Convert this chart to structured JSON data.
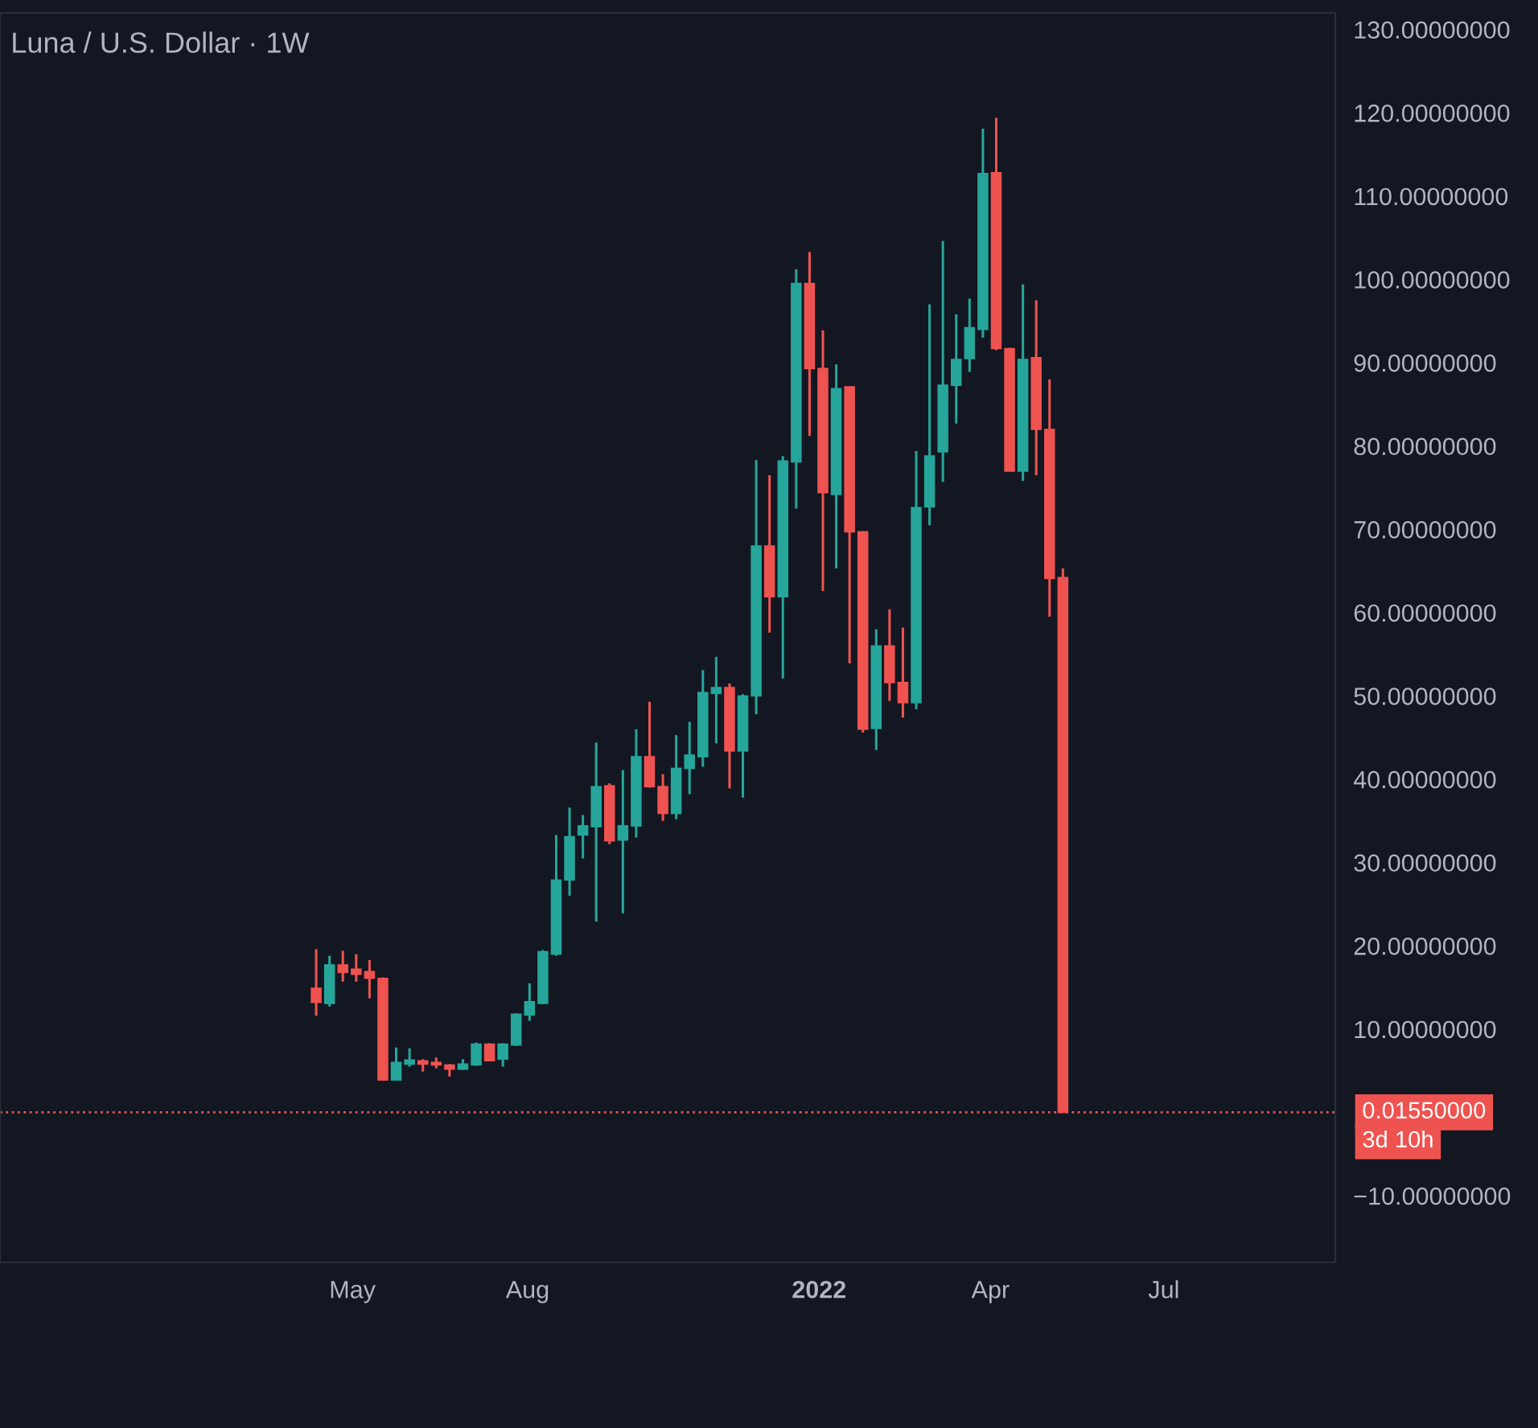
{
  "chart_data": {
    "type": "candlestick",
    "title": "Luna / U.S. Dollar · 1W",
    "x": [
      "2021-04-12",
      "2021-04-19",
      "2021-04-26",
      "2021-05-03",
      "2021-05-10",
      "2021-05-17",
      "2021-05-24",
      "2021-05-31",
      "2021-06-07",
      "2021-06-14",
      "2021-06-21",
      "2021-06-28",
      "2021-07-05",
      "2021-07-12",
      "2021-07-19",
      "2021-07-26",
      "2021-08-02",
      "2021-08-09",
      "2021-08-16",
      "2021-08-23",
      "2021-08-30",
      "2021-09-06",
      "2021-09-13",
      "2021-09-20",
      "2021-09-27",
      "2021-10-04",
      "2021-10-11",
      "2021-10-18",
      "2021-10-25",
      "2021-11-01",
      "2021-11-08",
      "2021-11-15",
      "2021-11-22",
      "2021-11-29",
      "2021-12-06",
      "2021-12-13",
      "2021-12-20",
      "2021-12-27",
      "2022-01-03",
      "2022-01-10",
      "2022-01-17",
      "2022-01-24",
      "2022-01-31",
      "2022-02-07",
      "2022-02-14",
      "2022-02-21",
      "2022-02-28",
      "2022-03-07",
      "2022-03-14",
      "2022-03-21",
      "2022-03-28",
      "2022-04-04",
      "2022-04-11",
      "2022-04-18",
      "2022-04-25",
      "2022-05-02",
      "2022-05-09"
    ],
    "ohlc": [
      [
        14.9,
        19.6,
        11.6,
        13.2
      ],
      [
        13.1,
        18.8,
        12.7,
        17.7
      ],
      [
        17.7,
        19.4,
        15.7,
        16.8
      ],
      [
        17.2,
        19.0,
        15.7,
        16.6
      ],
      [
        16.9,
        18.3,
        13.7,
        16.1
      ],
      [
        16.1,
        16.2,
        3.8,
        3.9
      ],
      [
        3.9,
        7.8,
        3.8,
        6.0
      ],
      [
        5.8,
        7.7,
        5.5,
        6.3
      ],
      [
        6.2,
        6.4,
        4.9,
        5.8
      ],
      [
        6.0,
        6.6,
        5.3,
        5.7
      ],
      [
        5.7,
        5.8,
        4.3,
        5.2
      ],
      [
        5.2,
        6.4,
        5.1,
        5.8
      ],
      [
        5.7,
        8.4,
        5.6,
        8.2
      ],
      [
        8.2,
        8.3,
        6.2,
        6.2
      ],
      [
        6.4,
        8.3,
        5.5,
        8.2
      ],
      [
        8.1,
        11.9,
        8.0,
        11.8
      ],
      [
        11.7,
        15.5,
        11.0,
        13.3
      ],
      [
        13.1,
        19.5,
        13.0,
        19.3
      ],
      [
        19.0,
        33.3,
        18.8,
        27.9
      ],
      [
        27.9,
        36.6,
        26.0,
        33.1
      ],
      [
        33.3,
        35.7,
        30.5,
        34.4
      ],
      [
        34.3,
        44.4,
        22.9,
        39.1
      ],
      [
        39.2,
        39.5,
        32.2,
        32.6
      ],
      [
        32.7,
        41.1,
        23.9,
        34.4
      ],
      [
        34.4,
        46.0,
        33.0,
        42.7
      ],
      [
        42.7,
        49.3,
        39.0,
        39.1
      ],
      [
        39.1,
        40.6,
        35.0,
        35.9
      ],
      [
        35.9,
        45.3,
        35.2,
        41.3
      ],
      [
        41.3,
        46.9,
        38.2,
        42.9
      ],
      [
        42.7,
        53.1,
        41.5,
        50.4
      ],
      [
        50.3,
        54.7,
        44.3,
        51.0
      ],
      [
        51.0,
        51.5,
        38.9,
        43.4
      ],
      [
        43.4,
        50.2,
        37.8,
        50.0
      ],
      [
        50.0,
        78.3,
        47.8,
        68.0
      ],
      [
        68.0,
        76.5,
        57.6,
        61.9
      ],
      [
        61.9,
        78.8,
        52.1,
        78.2
      ],
      [
        78.1,
        101.2,
        72.5,
        99.5
      ],
      [
        99.5,
        103.3,
        81.2,
        89.3
      ],
      [
        89.3,
        93.9,
        62.6,
        74.4
      ],
      [
        74.2,
        89.8,
        65.3,
        86.9
      ],
      [
        87.1,
        87.1,
        53.9,
        69.7
      ],
      [
        69.7,
        69.7,
        45.6,
        46.0
      ],
      [
        46.1,
        58.0,
        43.5,
        56.0
      ],
      [
        56.0,
        60.4,
        49.4,
        51.6
      ],
      [
        51.6,
        58.2,
        47.4,
        49.2
      ],
      [
        49.2,
        79.4,
        48.4,
        72.6
      ],
      [
        72.7,
        97.0,
        70.5,
        78.8
      ],
      [
        79.3,
        104.6,
        75.7,
        87.3
      ],
      [
        87.3,
        95.8,
        82.7,
        90.4
      ],
      [
        90.5,
        97.7,
        88.9,
        94.2
      ],
      [
        94.0,
        118.1,
        93.0,
        112.7
      ],
      [
        112.8,
        119.4,
        91.5,
        91.7
      ],
      [
        91.7,
        91.8,
        77.0,
        77.0
      ],
      [
        77.0,
        99.4,
        75.8,
        90.4
      ],
      [
        90.6,
        97.5,
        76.5,
        82.0
      ],
      [
        82.0,
        88.0,
        59.5,
        64.1
      ],
      [
        64.2,
        65.3,
        0.0155,
        0.0155
      ]
    ],
    "colors": [
      "#ef5350",
      "#26a69a",
      "#ef5350",
      "#ef5350",
      "#ef5350",
      "#ef5350",
      "#26a69a",
      "#26a69a",
      "#ef5350",
      "#ef5350",
      "#ef5350",
      "#26a69a",
      "#26a69a",
      "#ef5350",
      "#26a69a",
      "#26a69a",
      "#26a69a",
      "#26a69a",
      "#26a69a",
      "#26a69a",
      "#26a69a",
      "#26a69a",
      "#ef5350",
      "#26a69a",
      "#26a69a",
      "#ef5350",
      "#ef5350",
      "#26a69a",
      "#26a69a",
      "#26a69a",
      "#26a69a",
      "#ef5350",
      "#26a69a",
      "#26a69a",
      "#ef5350",
      "#26a69a",
      "#26a69a",
      "#ef5350",
      "#ef5350",
      "#26a69a",
      "#ef5350",
      "#ef5350",
      "#26a69a",
      "#ef5350",
      "#ef5350",
      "#26a69a",
      "#26a69a",
      "#26a69a",
      "#26a69a",
      "#26a69a",
      "#26a69a",
      "#ef5350",
      "#ef5350",
      "#26a69a",
      "#ef5350",
      "#ef5350",
      "#ef5350"
    ],
    "xlim": [
      "2020-10-28",
      "2022-09-29"
    ],
    "xticks": [
      {
        "value": "2021-05-01",
        "label": "May"
      },
      {
        "value": "2021-08-01",
        "label": "Aug"
      },
      {
        "value": "2022-01-01",
        "label": "2022"
      },
      {
        "value": "2022-04-01",
        "label": "Apr"
      },
      {
        "value": "2022-07-01",
        "label": "Jul"
      }
    ],
    "ylim": [
      -18,
      132
    ],
    "yticks": [
      {
        "value": -10,
        "label": "−10.00000000"
      },
      {
        "value": 10,
        "label": "10.00000000"
      },
      {
        "value": 20,
        "label": "20.00000000"
      },
      {
        "value": 30,
        "label": "30.00000000"
      },
      {
        "value": 40,
        "label": "40.00000000"
      },
      {
        "value": 50,
        "label": "50.00000000"
      },
      {
        "value": 60,
        "label": "60.00000000"
      },
      {
        "value": 70,
        "label": "70.00000000"
      },
      {
        "value": 80,
        "label": "80.00000000"
      },
      {
        "value": 90,
        "label": "90.00000000"
      },
      {
        "value": 100,
        "label": "100.00000000"
      },
      {
        "value": 110,
        "label": "110.00000000"
      },
      {
        "value": 120,
        "label": "120.00000000"
      },
      {
        "value": 130,
        "label": "130.00000000"
      }
    ],
    "ref_lines": [
      {
        "axis": "y",
        "value": 0.0155,
        "label": "0.01550000",
        "color": "#ef5350",
        "line_style": "dotted"
      }
    ],
    "annotations": [
      "3d 10h"
    ],
    "grid": false
  }
}
